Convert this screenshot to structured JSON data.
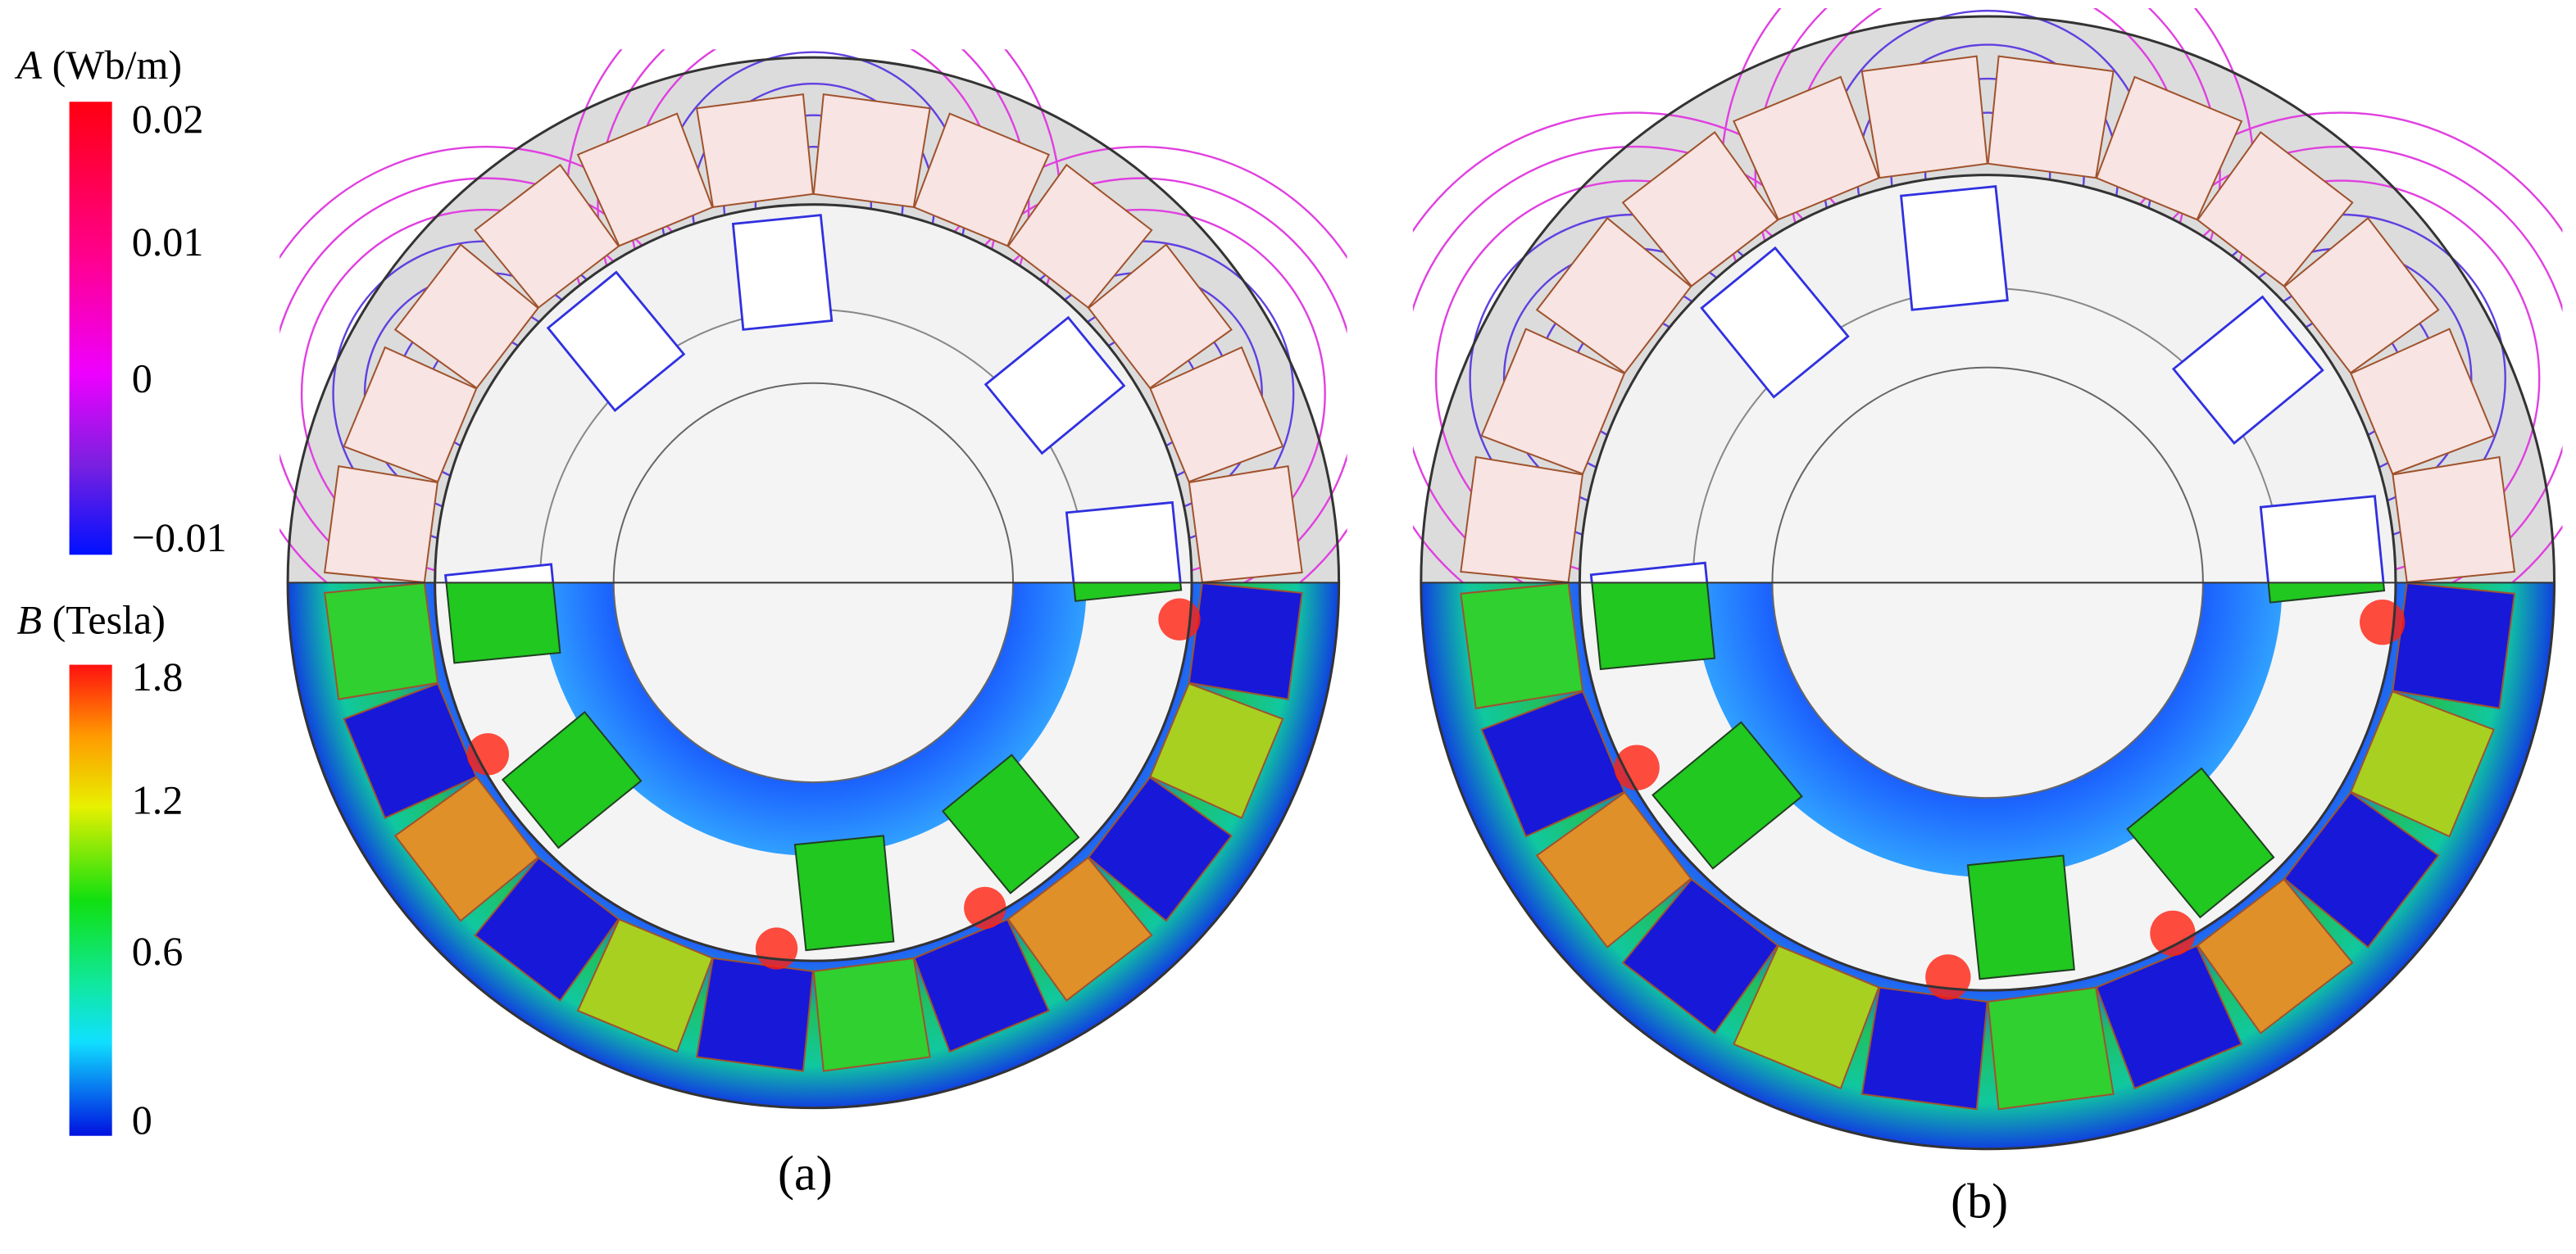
{
  "legend": {
    "flux": {
      "symbol": "A",
      "unit": "(Wb/m)",
      "ticks": [
        "0.02",
        "0.01",
        "0",
        "−0.01"
      ]
    },
    "density": {
      "symbol": "B",
      "unit": "(Tesla)",
      "ticks": [
        "1.8",
        "1.2",
        "0.6",
        "0"
      ]
    }
  },
  "panels": [
    {
      "caption": "(a)"
    },
    {
      "caption": "(b)"
    }
  ]
}
